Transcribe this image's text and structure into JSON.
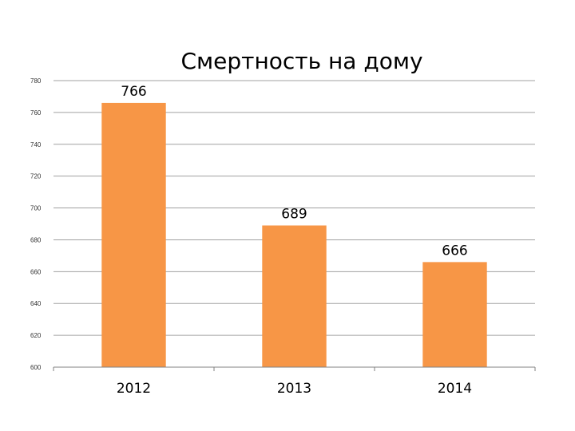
{
  "chart_data": {
    "type": "bar",
    "title": "Смертность на дому",
    "categories": [
      "2012",
      "2013",
      "2014"
    ],
    "values": [
      766,
      689,
      666
    ],
    "data_labels": [
      "766",
      "689",
      "666"
    ],
    "ylim": [
      600,
      780
    ],
    "yticks": [
      600,
      620,
      640,
      660,
      680,
      700,
      720,
      740,
      760,
      780
    ],
    "ytick_labels": [
      "600",
      "620",
      "640",
      "660",
      "680",
      "700",
      "720",
      "740",
      "760",
      "780"
    ],
    "grid": true,
    "legend": "none",
    "bar_color": "#F79646",
    "grid_color": "#A0A0A0"
  }
}
